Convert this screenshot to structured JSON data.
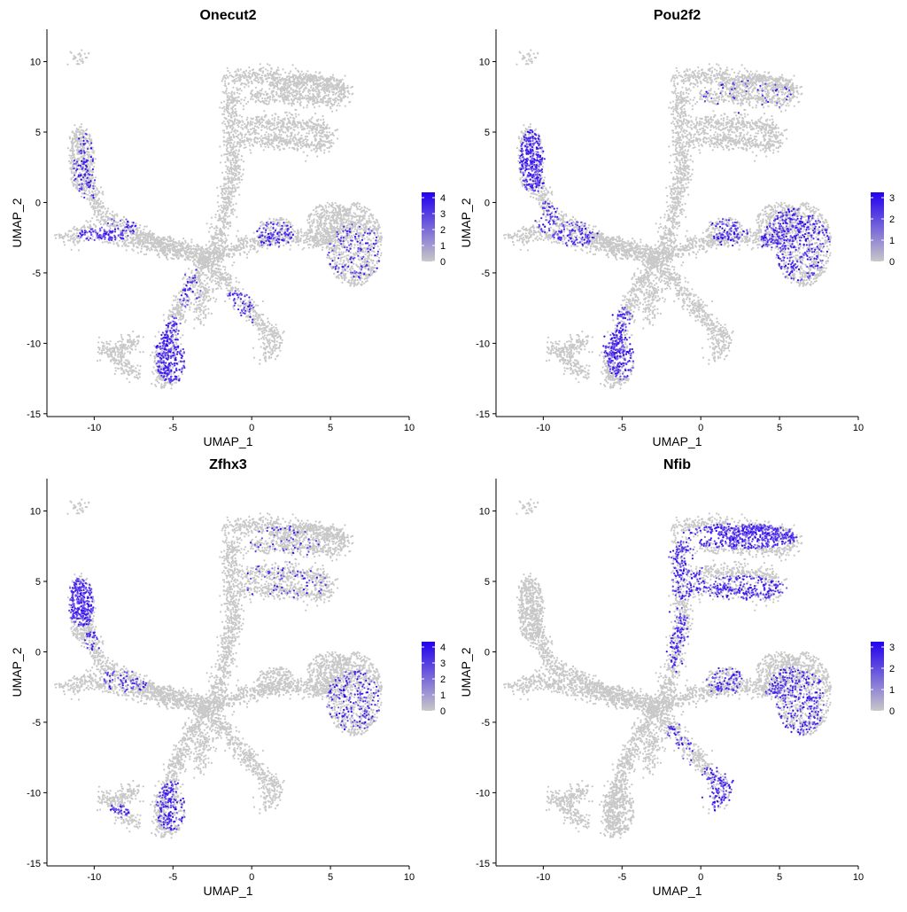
{
  "chart_data": [
    {
      "type": "scatter",
      "title": "Onecut2",
      "xlabel": "UMAP_1",
      "ylabel": "UMAP_2",
      "xlim": [
        -13,
        10
      ],
      "ylim": [
        -15.2,
        12.3
      ],
      "xticks": [
        -10,
        -5,
        0,
        5,
        10
      ],
      "yticks": [
        -15,
        -10,
        -5,
        0,
        5,
        10
      ],
      "grid": false,
      "legend": {
        "placement": "right",
        "type": "colorbar",
        "ticks": [
          "4",
          "3",
          "2",
          "1",
          "0"
        ],
        "vmin": 0,
        "vmax": 4,
        "low_color": "#c8c8c8",
        "high_color": "#2200ee"
      },
      "high_expression_regions": [
        {
          "x": -10.6,
          "y": 2.0,
          "rx": 0.7,
          "ry": 3.0,
          "level": 0.25
        },
        {
          "x": -9.5,
          "y": -2.3,
          "rx": 1.6,
          "ry": 0.5,
          "level": 0.85
        },
        {
          "x": -8.5,
          "y": -1.8,
          "rx": 1.2,
          "ry": 0.7,
          "level": 0.45
        },
        {
          "x": -5.0,
          "y": -10.5,
          "rx": 1.2,
          "ry": 2.4,
          "level": 0.65
        },
        {
          "x": -4.0,
          "y": -6.0,
          "rx": 0.8,
          "ry": 1.6,
          "level": 0.45
        },
        {
          "x": -1.0,
          "y": -7.8,
          "rx": 1.2,
          "ry": 1.6,
          "level": 0.5
        },
        {
          "x": 1.5,
          "y": -2.3,
          "rx": 1.3,
          "ry": 1.0,
          "level": 0.4
        },
        {
          "x": 6.5,
          "y": -3.5,
          "rx": 1.8,
          "ry": 2.0,
          "level": 0.22
        }
      ]
    },
    {
      "type": "scatter",
      "title": "Pou2f2",
      "xlabel": "UMAP_1",
      "ylabel": "UMAP_2",
      "xlim": [
        -13,
        10
      ],
      "ylim": [
        -15.2,
        12.3
      ],
      "xticks": [
        -10,
        -5,
        0,
        5,
        10
      ],
      "yticks": [
        -15,
        -10,
        -5,
        0,
        5,
        10
      ],
      "grid": false,
      "legend": {
        "placement": "right",
        "type": "colorbar",
        "ticks": [
          "3",
          "2",
          "1",
          "0"
        ],
        "vmin": 0,
        "vmax": 3,
        "low_color": "#c8c8c8",
        "high_color": "#2200ee"
      },
      "high_expression_regions": [
        {
          "x": -10.6,
          "y": 3.0,
          "rx": 0.9,
          "ry": 2.4,
          "level": 0.7
        },
        {
          "x": -9.8,
          "y": -1.0,
          "rx": 0.8,
          "ry": 1.2,
          "level": 0.5
        },
        {
          "x": -8.0,
          "y": -2.2,
          "rx": 1.5,
          "ry": 0.9,
          "level": 0.45
        },
        {
          "x": -5.0,
          "y": -10.0,
          "rx": 1.2,
          "ry": 2.6,
          "level": 0.6
        },
        {
          "x": 6.0,
          "y": -3.0,
          "rx": 2.2,
          "ry": 2.6,
          "level": 0.5
        },
        {
          "x": 1.8,
          "y": -2.0,
          "rx": 1.2,
          "ry": 1.2,
          "level": 0.4
        },
        {
          "x": 3.0,
          "y": 7.5,
          "rx": 3.0,
          "ry": 1.2,
          "level": 0.12
        }
      ]
    },
    {
      "type": "scatter",
      "title": "Zfhx3",
      "xlabel": "UMAP_1",
      "ylabel": "UMAP_2",
      "xlim": [
        -13,
        10
      ],
      "ylim": [
        -15.2,
        12.3
      ],
      "xticks": [
        -10,
        -5,
        0,
        5,
        10
      ],
      "yticks": [
        -15,
        -10,
        -5,
        0,
        5,
        10
      ],
      "grid": false,
      "legend": {
        "placement": "right",
        "type": "colorbar",
        "ticks": [
          "4",
          "3",
          "2",
          "1",
          "0"
        ],
        "vmin": 0,
        "vmax": 4,
        "low_color": "#c8c8c8",
        "high_color": "#2200ee"
      },
      "high_expression_regions": [
        {
          "x": -10.8,
          "y": 3.5,
          "rx": 0.9,
          "ry": 1.8,
          "level": 0.95
        },
        {
          "x": -10.0,
          "y": 0.8,
          "rx": 0.6,
          "ry": 0.8,
          "level": 0.6
        },
        {
          "x": -8.0,
          "y": -2.0,
          "rx": 1.6,
          "ry": 0.9,
          "level": 0.3
        },
        {
          "x": -5.0,
          "y": -11.0,
          "rx": 1.1,
          "ry": 1.8,
          "level": 0.45
        },
        {
          "x": -8.5,
          "y": -11.3,
          "rx": 0.8,
          "ry": 0.5,
          "level": 0.5
        },
        {
          "x": 6.5,
          "y": -3.5,
          "rx": 1.8,
          "ry": 2.2,
          "level": 0.3
        },
        {
          "x": 2.0,
          "y": 6.0,
          "rx": 3.0,
          "ry": 3.0,
          "level": 0.1
        }
      ]
    },
    {
      "type": "scatter",
      "title": "Nfib",
      "xlabel": "UMAP_1",
      "ylabel": "UMAP_2",
      "xlim": [
        -13,
        10
      ],
      "ylim": [
        -15.2,
        12.3
      ],
      "xticks": [
        -10,
        -5,
        0,
        5,
        10
      ],
      "yticks": [
        -15,
        -10,
        -5,
        0,
        5,
        10
      ],
      "grid": false,
      "legend": {
        "placement": "right",
        "type": "colorbar",
        "ticks": [
          "3",
          "2",
          "1",
          "0"
        ],
        "vmin": 0,
        "vmax": 3,
        "low_color": "#c8c8c8",
        "high_color": "#2200ee"
      },
      "high_expression_regions": [
        {
          "x": 2.5,
          "y": 8.2,
          "rx": 3.8,
          "ry": 0.9,
          "level": 0.8
        },
        {
          "x": 2.5,
          "y": 4.5,
          "rx": 3.0,
          "ry": 0.9,
          "level": 0.7
        },
        {
          "x": -1.0,
          "y": 6.0,
          "rx": 1.2,
          "ry": 2.5,
          "level": 0.6
        },
        {
          "x": -1.5,
          "y": 1.0,
          "rx": 0.8,
          "ry": 2.5,
          "level": 0.45
        },
        {
          "x": 1.0,
          "y": -10.0,
          "rx": 1.5,
          "ry": 2.0,
          "level": 0.6
        },
        {
          "x": -1.5,
          "y": -7.0,
          "rx": 1.0,
          "ry": 2.0,
          "level": 0.35
        },
        {
          "x": 6.0,
          "y": -3.5,
          "rx": 2.0,
          "ry": 2.5,
          "level": 0.4
        },
        {
          "x": 1.5,
          "y": -2.0,
          "rx": 1.2,
          "ry": 1.2,
          "level": 0.35
        }
      ]
    }
  ]
}
